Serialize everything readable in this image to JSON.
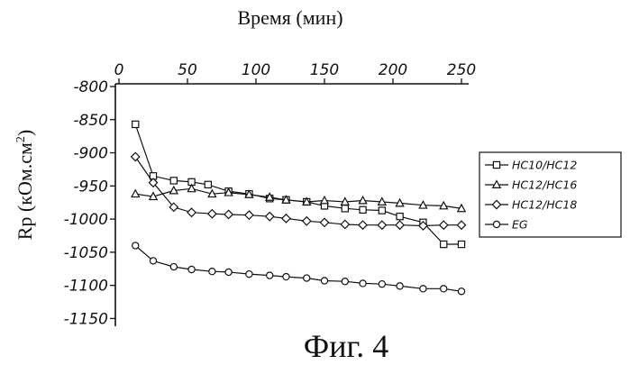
{
  "chart_data": {
    "type": "line",
    "title": "Время (мин)",
    "ylabel": "Rp (кОм.см",
    "ylabel_superscript": "2",
    "ylabel_close": ")",
    "caption": "Фиг. 4",
    "xlim": [
      0,
      260
    ],
    "ylim": [
      -1160,
      -800
    ],
    "x_ticks": [
      0,
      50,
      100,
      150,
      200,
      250
    ],
    "y_ticks": [
      -800,
      -850,
      -900,
      -950,
      -1000,
      -1050,
      -1100,
      -1150
    ],
    "x_axis_position": "top",
    "grid": false,
    "legend_position": "right",
    "series": [
      {
        "name": "HC10/HC12",
        "marker": "square",
        "x": [
          12,
          25,
          40,
          53,
          65,
          80,
          95,
          110,
          122,
          137,
          150,
          165,
          178,
          192,
          205,
          222,
          237,
          250
        ],
        "y": [
          -857,
          -935,
          -942,
          -944,
          -948,
          -958,
          -962,
          -969,
          -971,
          -974,
          -980,
          -984,
          -986,
          -987,
          -996,
          -1005,
          -1038,
          -1038
        ]
      },
      {
        "name": "HC12/HC16",
        "marker": "triangle",
        "x": [
          12,
          25,
          40,
          53,
          68,
          80,
          95,
          110,
          122,
          137,
          150,
          165,
          178,
          192,
          205,
          222,
          237,
          250
        ],
        "y": [
          -962,
          -966,
          -957,
          -954,
          -962,
          -960,
          -963,
          -967,
          -971,
          -974,
          -972,
          -974,
          -972,
          -974,
          -976,
          -979,
          -980,
          -984
        ]
      },
      {
        "name": "HC12/HC18",
        "marker": "diamond",
        "x": [
          12,
          25,
          40,
          53,
          68,
          80,
          95,
          110,
          122,
          137,
          150,
          165,
          178,
          192,
          205,
          222,
          237,
          250
        ],
        "y": [
          -906,
          -945,
          -982,
          -990,
          -992,
          -993,
          -994,
          -996,
          -999,
          -1003,
          -1005,
          -1008,
          -1009,
          -1009,
          -1009,
          -1010,
          -1009,
          -1009
        ]
      },
      {
        "name": "EG",
        "marker": "circle",
        "x": [
          12,
          25,
          40,
          53,
          68,
          80,
          95,
          110,
          122,
          137,
          150,
          165,
          178,
          192,
          205,
          222,
          237,
          250
        ],
        "y": [
          -1040,
          -1063,
          -1072,
          -1076,
          -1079,
          -1080,
          -1083,
          -1085,
          -1087,
          -1089,
          -1093,
          -1094,
          -1097,
          -1098,
          -1101,
          -1105,
          -1105,
          -1109
        ]
      }
    ]
  }
}
